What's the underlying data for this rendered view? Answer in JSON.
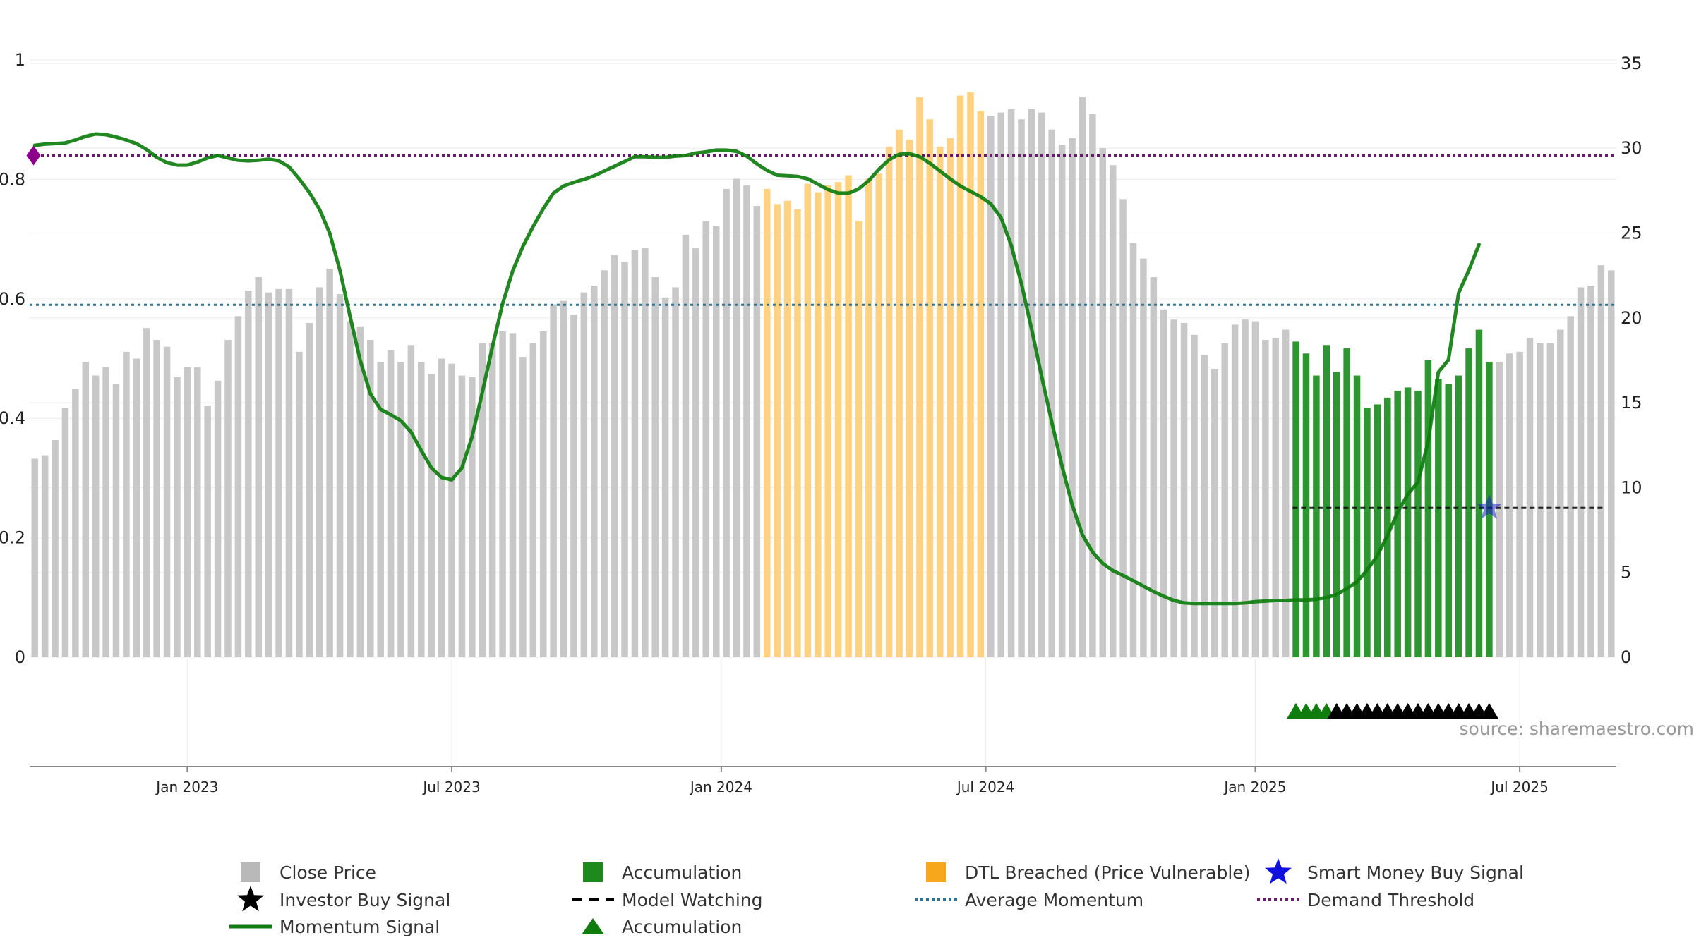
{
  "chart_data": {
    "type": "bar",
    "source": "source: sharemaestro.com",
    "left_axis": {
      "ticks": [
        0,
        0.2,
        0.4,
        0.6,
        0.8,
        1
      ],
      "labels": [
        "0",
        "0.2",
        "0.4",
        "0.6",
        "0.8",
        "1"
      ],
      "range": [
        0,
        1
      ]
    },
    "right_axis": {
      "ticks": [
        0,
        5,
        10,
        15,
        20,
        25,
        30,
        35
      ],
      "labels": [
        "0",
        "5",
        "10",
        "15",
        "20",
        "25",
        "30",
        "35"
      ],
      "range": [
        0,
        35.2
      ]
    },
    "x_ticks": [
      {
        "label": "Jan 2023",
        "week": 15
      },
      {
        "label": "Jul 2023",
        "week": 41
      },
      {
        "label": "Jan 2024",
        "week": 67.5
      },
      {
        "label": "Jul 2024",
        "week": 93.5
      },
      {
        "label": "Jan 2025",
        "week": 120
      },
      {
        "label": "Jul 2025",
        "week": 146
      }
    ],
    "close_price": [
      11.7,
      11.9,
      12.8,
      14.7,
      15.8,
      17.4,
      16.6,
      17.1,
      16.1,
      18.0,
      17.6,
      19.4,
      18.7,
      18.3,
      16.5,
      17.1,
      17.1,
      14.8,
      16.3,
      18.7,
      20.1,
      21.6,
      22.4,
      21.5,
      21.7,
      21.7,
      18.0,
      19.7,
      21.8,
      22.9,
      21.4,
      19.8,
      19.5,
      18.7,
      17.4,
      18.1,
      17.4,
      18.4,
      17.4,
      16.7,
      17.6,
      17.3,
      16.6,
      16.5,
      18.5,
      18.5,
      19.2,
      19.1,
      17.7,
      18.5,
      19.2,
      20.8,
      21.0,
      20.2,
      21.5,
      21.9,
      22.8,
      23.7,
      23.3,
      24.0,
      24.1,
      22.4,
      21.2,
      21.8,
      24.9,
      24.1,
      25.7,
      25.4,
      27.6,
      28.2,
      27.8,
      26.6,
      27.6,
      26.7,
      26.9,
      26.4,
      27.9,
      27.4,
      27.8,
      28.0,
      28.4,
      25.7,
      28.2,
      28.5,
      30.1,
      31.1,
      30.5,
      33.0,
      31.7,
      30.1,
      30.6,
      33.1,
      33.3,
      32.2,
      31.9,
      32.1,
      32.3,
      31.7,
      32.3,
      32.1,
      31.1,
      30.2,
      30.6,
      33.0,
      32.0,
      30.0,
      29.0,
      27.0,
      24.4,
      23.5,
      22.4,
      20.5,
      19.9,
      19.7,
      19.0,
      17.8,
      17.0,
      18.5,
      19.6,
      19.9,
      19.8,
      18.7,
      18.8,
      19.3,
      18.6,
      17.9,
      16.6,
      18.4,
      16.8,
      18.2,
      16.6,
      14.7,
      14.9,
      15.3,
      15.7,
      15.9,
      15.7,
      17.5,
      16.4,
      16.1,
      16.6,
      18.2,
      19.3,
      17.4,
      17.4,
      17.9,
      18.0,
      18.8,
      18.5,
      18.5,
      19.3,
      20.1,
      21.8,
      21.9,
      23.1,
      22.8
    ],
    "momentum_signal": [
      0.857,
      0.859,
      0.86,
      0.861,
      0.866,
      0.872,
      0.876,
      0.875,
      0.871,
      0.866,
      0.86,
      0.85,
      0.837,
      0.828,
      0.824,
      0.824,
      0.829,
      0.836,
      0.84,
      0.836,
      0.832,
      0.831,
      0.832,
      0.834,
      0.831,
      0.821,
      0.801,
      0.778,
      0.75,
      0.71,
      0.648,
      0.571,
      0.497,
      0.441,
      0.415,
      0.406,
      0.396,
      0.377,
      0.346,
      0.317,
      0.301,
      0.297,
      0.317,
      0.369,
      0.443,
      0.52,
      0.592,
      0.647,
      0.688,
      0.721,
      0.751,
      0.777,
      0.789,
      0.795,
      0.8,
      0.806,
      0.814,
      0.822,
      0.83,
      0.838,
      0.838,
      0.837,
      0.837,
      0.839,
      0.84,
      0.844,
      0.846,
      0.849,
      0.849,
      0.847,
      0.839,
      0.826,
      0.815,
      0.807,
      0.806,
      0.805,
      0.801,
      0.792,
      0.783,
      0.777,
      0.777,
      0.784,
      0.798,
      0.817,
      0.833,
      0.842,
      0.843,
      0.838,
      0.827,
      0.814,
      0.801,
      0.789,
      0.78,
      0.771,
      0.759,
      0.736,
      0.69,
      0.626,
      0.55,
      0.47,
      0.393,
      0.32,
      0.255,
      0.205,
      0.176,
      0.157,
      0.145,
      0.137,
      0.128,
      0.119,
      0.11,
      0.102,
      0.095,
      0.091,
      0.09,
      0.09,
      0.09,
      0.09,
      0.09,
      0.091,
      0.093,
      0.094,
      0.095,
      0.095,
      0.096,
      0.096,
      0.097,
      0.1,
      0.105,
      0.115,
      0.126,
      0.146,
      0.17,
      0.204,
      0.243,
      0.273,
      0.293,
      0.361,
      0.477,
      0.498,
      0.61,
      0.648,
      0.691
    ],
    "average_momentum": 0.59,
    "demand_threshold": 0.84,
    "dtl_breached_range": [
      72,
      93
    ],
    "accumulation_range": [
      124,
      143
    ],
    "model_watching": {
      "value": 0.25,
      "from_week": 124,
      "to_week": 154
    },
    "smart_money_buy_signal": {
      "week": 143,
      "value": 0.25
    },
    "demand_marker": {
      "week": 0.3,
      "value": 0.84
    },
    "triangles_accumulation": [
      124,
      125,
      126,
      127
    ],
    "triangles_investor": [
      128,
      129,
      130,
      131,
      132,
      133,
      134,
      135,
      136,
      137,
      138,
      139,
      140,
      141,
      142,
      143
    ],
    "colors": {
      "close": "#c8c8c8",
      "accumulation": "#2e9630",
      "dtl": "#ffd281",
      "momentum": "#0e7d0e",
      "avg_momentum": "#2e7394",
      "demand": "#6a1a6e",
      "smart_money": "#1c1ccc",
      "grid": "#ebebeb"
    },
    "legend": [
      {
        "label": "Close Price",
        "symbol": "square",
        "color": "#b9b9b9"
      },
      {
        "label": "Accumulation",
        "symbol": "square",
        "color": "#1e8a1e"
      },
      {
        "label": "DTL Breached (Price Vulnerable)",
        "symbol": "square",
        "color": "#f7a71c"
      },
      {
        "label": "Smart Money Buy Signal",
        "symbol": "star",
        "color": "#1010e0"
      },
      {
        "label": "Investor Buy Signal",
        "symbol": "star",
        "color": "#000000"
      },
      {
        "label": "Model Watching",
        "symbol": "dash",
        "color": "#000000"
      },
      {
        "label": "Average Momentum",
        "symbol": "dots",
        "color": "#2e7394"
      },
      {
        "label": "Demand Threshold",
        "symbol": "dots",
        "color": "#6a1a6e"
      },
      {
        "label": "Momentum Signal",
        "symbol": "line",
        "color": "#0e7d0e"
      },
      {
        "label": "Accumulation",
        "symbol": "triangle",
        "color": "#0e7d0e"
      }
    ]
  }
}
